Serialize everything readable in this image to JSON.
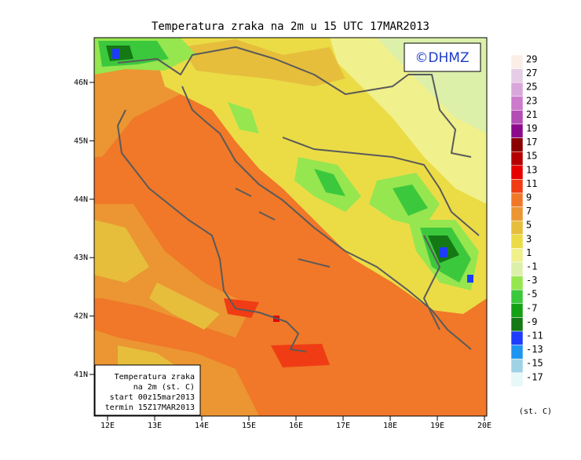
{
  "title": "Temperatura zraka na 2m u 15 UTC 17MAR2013",
  "logo": "©DHMZ",
  "map": {
    "lon_labels": [
      "12E",
      "13E",
      "14E",
      "15E",
      "16E",
      "17E",
      "18E",
      "19E",
      "20E"
    ],
    "lat_labels": [
      "46N",
      "45N",
      "44N",
      "43N",
      "42N",
      "41N"
    ]
  },
  "info_box": [
    "Temperatura zraka",
    "na 2m (st. C)",
    "start 00z15mar2013",
    "termin 15Z17MAR2013"
  ],
  "legend": {
    "levels": [
      29,
      27,
      25,
      23,
      21,
      19,
      17,
      15,
      13,
      11,
      9,
      7,
      5,
      3,
      1,
      -1,
      -3,
      -5,
      -7,
      -9,
      -11,
      -13,
      -15,
      -17
    ],
    "colors": [
      "#fbeee6",
      "#e6cde6",
      "#d9a6d9",
      "#cc7acc",
      "#b44db4",
      "#8c0a8c",
      "#8b0000",
      "#b40000",
      "#e60000",
      "#f03c14",
      "#f07828",
      "#eb9632",
      "#e6be3c",
      "#ebdc46",
      "#f0f08c",
      "#dcf0aa",
      "#96e650",
      "#3cc83c",
      "#14a014",
      "#147814",
      "#1e3cff",
      "#1e96f0",
      "#a0d2e6",
      "#e6f8f8"
    ],
    "unit": "(st. C)"
  }
}
